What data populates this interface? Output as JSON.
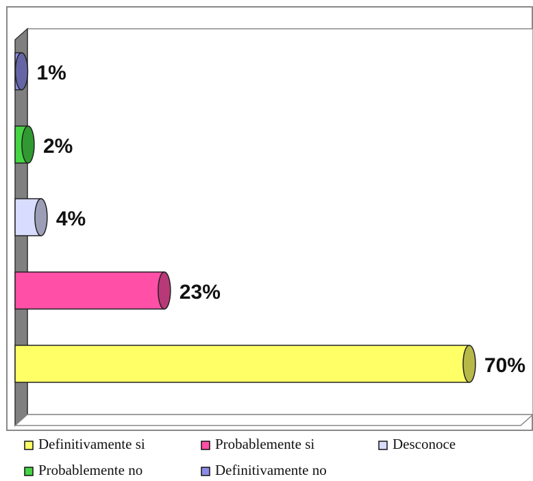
{
  "chart_data": {
    "type": "bar",
    "orientation": "horizontal",
    "categories": [
      "Definitivamente si",
      "Probablemente si",
      "Desconoce",
      "Probablemente no",
      "Definitivamente no"
    ],
    "values": [
      70,
      23,
      4,
      2,
      1
    ],
    "value_labels": [
      "70%",
      "23%",
      "4%",
      "2%",
      "1%"
    ],
    "colors": [
      "#ffff66",
      "#ff4fa7",
      "#d8dcff",
      "#44d444",
      "#8c8ce6"
    ],
    "legend": "bottom"
  }
}
